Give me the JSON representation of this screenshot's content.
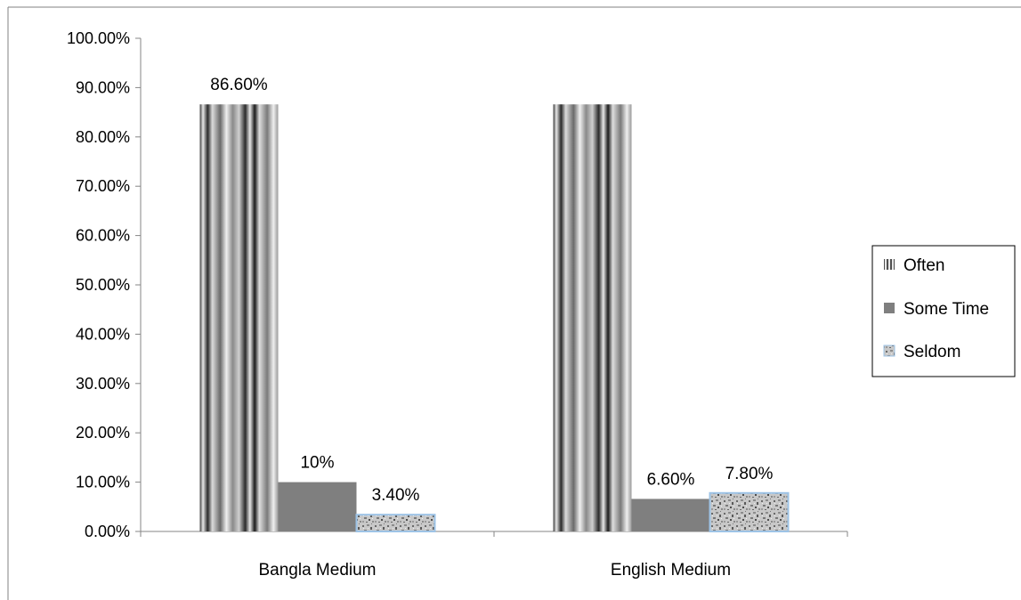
{
  "chart_data": {
    "type": "bar",
    "categories": [
      "Bangla Medium",
      "English Medium"
    ],
    "series": [
      {
        "name": "Often",
        "values": [
          86.6,
          86.6
        ],
        "labels": [
          "86.60%",
          ""
        ],
        "color": "#9a9a9a",
        "pattern": "vertical-stripes"
      },
      {
        "name": "Some Time",
        "values": [
          10,
          6.6
        ],
        "labels": [
          "10%",
          "6.60%"
        ],
        "color": "#7f7f7f",
        "pattern": "solid"
      },
      {
        "name": "Seldom",
        "values": [
          3.4,
          7.8
        ],
        "labels": [
          "3.40%",
          "7.80%"
        ],
        "color": "#b0b0b0",
        "pattern": "speckle",
        "border": "#9dc3e6"
      }
    ],
    "ylim": [
      0,
      100
    ],
    "yticks": [
      "0.00%",
      "10.00%",
      "20.00%",
      "30.00%",
      "40.00%",
      "50.00%",
      "60.00%",
      "70.00%",
      "80.00%",
      "90.00%",
      "100.00%"
    ],
    "grid": false,
    "legend": "right"
  }
}
